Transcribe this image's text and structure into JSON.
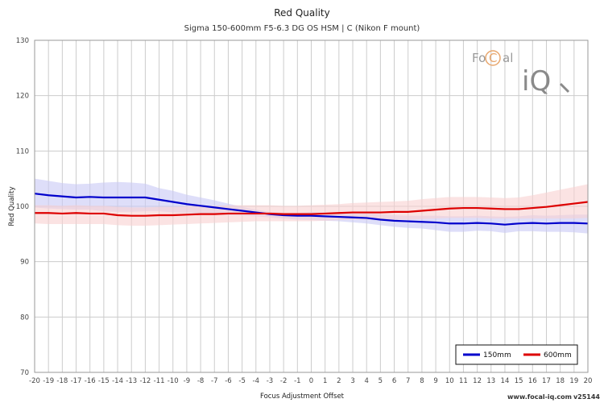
{
  "chart_data": {
    "type": "line",
    "title": "Red Quality",
    "subtitle": "Sigma 150-600mm F5-6.3 DG OS HSM | C (Nikon F mount)",
    "xlabel": "Focus Adjustment Offset",
    "ylabel": "Red Quality",
    "xlim": [
      -20,
      20
    ],
    "ylim": [
      70,
      130
    ],
    "yticks": [
      70,
      80,
      90,
      100,
      110,
      120,
      130
    ],
    "xticks": [
      -20,
      -19,
      -18,
      -17,
      -16,
      -15,
      -14,
      -13,
      -12,
      -11,
      -10,
      -9,
      -8,
      -7,
      -6,
      -5,
      -4,
      -3,
      -2,
      -1,
      0,
      1,
      2,
      3,
      4,
      5,
      6,
      7,
      8,
      9,
      10,
      11,
      12,
      13,
      14,
      15,
      16,
      17,
      18,
      19,
      20
    ],
    "grid": true,
    "legend_position": "bottom-right",
    "series": [
      {
        "name": "150mm",
        "color": "#0000cc",
        "band_color": "#c8c8f5",
        "x": [
          -20,
          -19,
          -18,
          -17,
          -16,
          -15,
          -14,
          -13,
          -12,
          -11,
          -10,
          -9,
          -8,
          -7,
          -6,
          -5,
          -4,
          -3,
          -2,
          -1,
          0,
          1,
          2,
          3,
          4,
          5,
          6,
          7,
          8,
          9,
          10,
          11,
          12,
          13,
          14,
          15,
          16,
          17,
          18,
          19,
          20
        ],
        "y": [
          102.3,
          102.0,
          101.8,
          101.6,
          101.7,
          101.6,
          101.6,
          101.6,
          101.6,
          101.2,
          100.8,
          100.4,
          100.1,
          99.8,
          99.5,
          99.2,
          98.9,
          98.6,
          98.4,
          98.3,
          98.3,
          98.2,
          98.1,
          98.0,
          97.9,
          97.6,
          97.4,
          97.3,
          97.2,
          97.1,
          96.9,
          96.9,
          97.0,
          96.9,
          96.7,
          96.9,
          97.0,
          96.9,
          97.0,
          97.0,
          96.9
        ],
        "upper": [
          105.0,
          104.6,
          104.2,
          104.0,
          104.1,
          104.3,
          104.4,
          104.3,
          104.1,
          103.3,
          102.8,
          102.1,
          101.6,
          101.1,
          100.5,
          99.9,
          99.4,
          99.0,
          98.8,
          98.8,
          99.0,
          98.9,
          98.9,
          98.9,
          98.8,
          98.6,
          98.4,
          98.3,
          98.3,
          98.3,
          98.2,
          98.2,
          98.3,
          98.2,
          98.1,
          98.2,
          98.4,
          98.3,
          98.4,
          98.5,
          98.5
        ],
        "lower": [
          99.8,
          99.6,
          99.5,
          99.4,
          99.4,
          99.1,
          99.0,
          99.0,
          99.1,
          99.1,
          98.9,
          98.8,
          98.6,
          98.5,
          98.4,
          98.3,
          98.2,
          98.0,
          97.8,
          97.6,
          97.5,
          97.4,
          97.3,
          97.1,
          96.9,
          96.6,
          96.3,
          96.1,
          96.0,
          95.7,
          95.4,
          95.4,
          95.6,
          95.5,
          95.2,
          95.5,
          95.5,
          95.4,
          95.4,
          95.3,
          95.1
        ]
      },
      {
        "name": "600mm",
        "color": "#dd0000",
        "band_color": "#f8d0d0",
        "x": [
          -20,
          -19,
          -18,
          -17,
          -16,
          -15,
          -14,
          -13,
          -12,
          -11,
          -10,
          -9,
          -8,
          -7,
          -6,
          -5,
          -4,
          -3,
          -2,
          -1,
          0,
          1,
          2,
          3,
          4,
          5,
          6,
          7,
          8,
          9,
          10,
          11,
          12,
          13,
          14,
          15,
          16,
          17,
          18,
          19,
          20
        ],
        "y": [
          98.8,
          98.8,
          98.7,
          98.8,
          98.7,
          98.7,
          98.4,
          98.3,
          98.3,
          98.4,
          98.4,
          98.5,
          98.6,
          98.6,
          98.7,
          98.7,
          98.7,
          98.7,
          98.6,
          98.6,
          98.6,
          98.7,
          98.8,
          98.9,
          98.9,
          98.9,
          99.0,
          99.0,
          99.2,
          99.4,
          99.6,
          99.7,
          99.7,
          99.6,
          99.5,
          99.5,
          99.7,
          99.9,
          100.2,
          100.5,
          100.8
        ],
        "upper": [
          100.2,
          100.2,
          100.1,
          100.2,
          100.1,
          100.1,
          99.9,
          99.8,
          99.8,
          99.9,
          99.9,
          100.0,
          100.1,
          100.1,
          100.2,
          100.2,
          100.2,
          100.2,
          100.1,
          100.1,
          100.2,
          100.3,
          100.4,
          100.6,
          100.7,
          100.8,
          100.9,
          101.0,
          101.3,
          101.5,
          101.7,
          101.7,
          101.7,
          101.6,
          101.5,
          101.6,
          102.0,
          102.5,
          103.0,
          103.5,
          104.0
        ],
        "lower": [
          96.9,
          96.8,
          96.8,
          96.8,
          96.8,
          96.8,
          96.6,
          96.5,
          96.5,
          96.6,
          96.7,
          96.8,
          96.9,
          97.0,
          97.1,
          97.2,
          97.3,
          97.3,
          97.3,
          97.3,
          97.3,
          97.4,
          97.5,
          97.6,
          97.6,
          97.6,
          97.6,
          97.6,
          97.7,
          97.8,
          97.9,
          97.9,
          97.9,
          97.8,
          97.8,
          97.8,
          97.8,
          97.8,
          97.8,
          97.8,
          97.9
        ]
      }
    ]
  },
  "logo": {
    "text_top_gray1": "Fo",
    "text_top_orange": "C",
    "text_top_gray2": "al",
    "text_bottom": "iQ"
  },
  "footer": {
    "url": "www.focal-iq.com",
    "version": "v25144"
  }
}
